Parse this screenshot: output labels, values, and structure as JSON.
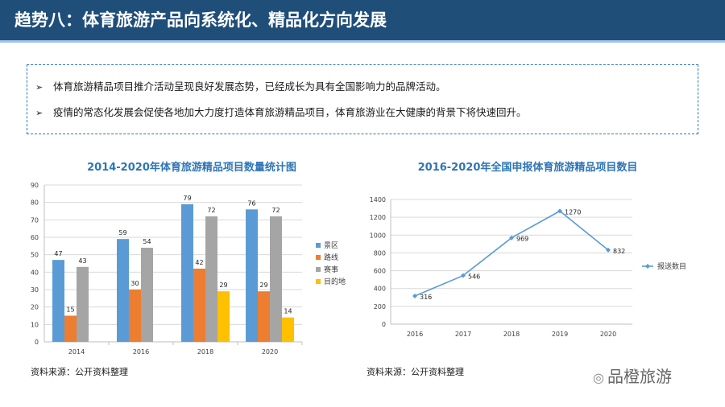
{
  "header": {
    "title": "趋势八：体育旅游产品向系统化、精品化方向发展"
  },
  "bullets": [
    "体育旅游精品项目推介活动呈现良好发展态势，已经成长为具有全国影响力的品牌活动。",
    "疫情的常态化发展会促使各地加大力度打造体育旅游精品项目，体育旅游业在大健康的背景下将快速回升。"
  ],
  "bullet_marker": "➢",
  "left_source": "资料来源：公开资料整理",
  "right_source": "资料来源：公开资料整理",
  "brand": {
    "icon": "wechat-icon",
    "icon_glyph": "◎",
    "text": "品橙旅游"
  },
  "chart_data": [
    {
      "type": "bar",
      "title": "2014-2020年体育旅游精品项目数量统计图",
      "categories": [
        "2014",
        "2016",
        "2018",
        "2020"
      ],
      "series": [
        {
          "name": "景区",
          "color": "#5b9bd5",
          "values": [
            47,
            59,
            79,
            76
          ]
        },
        {
          "name": "路线",
          "color": "#ed7d31",
          "values": [
            15,
            30,
            42,
            29
          ]
        },
        {
          "name": "赛事",
          "color": "#a5a5a5",
          "values": [
            43,
            54,
            72,
            72
          ]
        },
        {
          "name": "目的地",
          "color": "#ffc000",
          "values": [
            null,
            null,
            29,
            14
          ]
        }
      ],
      "ylim": [
        0,
        90
      ],
      "yticks": [
        0,
        10,
        20,
        30,
        40,
        50,
        60,
        70,
        80,
        90
      ],
      "grid": true,
      "legend": "right",
      "xlabel": "",
      "ylabel": ""
    },
    {
      "type": "line",
      "title": "2016-2020年全国申报体育旅游精品项目数目",
      "x": [
        "2016",
        "2017",
        "2018",
        "2019",
        "2020"
      ],
      "series": [
        {
          "name": "报送数目",
          "color": "#5b9bd5",
          "values": [
            316,
            546,
            969,
            1270,
            832
          ]
        }
      ],
      "ylim": [
        0,
        1400
      ],
      "yticks": [
        0,
        200,
        400,
        600,
        800,
        1000,
        1200,
        1400
      ],
      "grid": true,
      "legend": "right",
      "xlabel": "",
      "ylabel": ""
    }
  ]
}
